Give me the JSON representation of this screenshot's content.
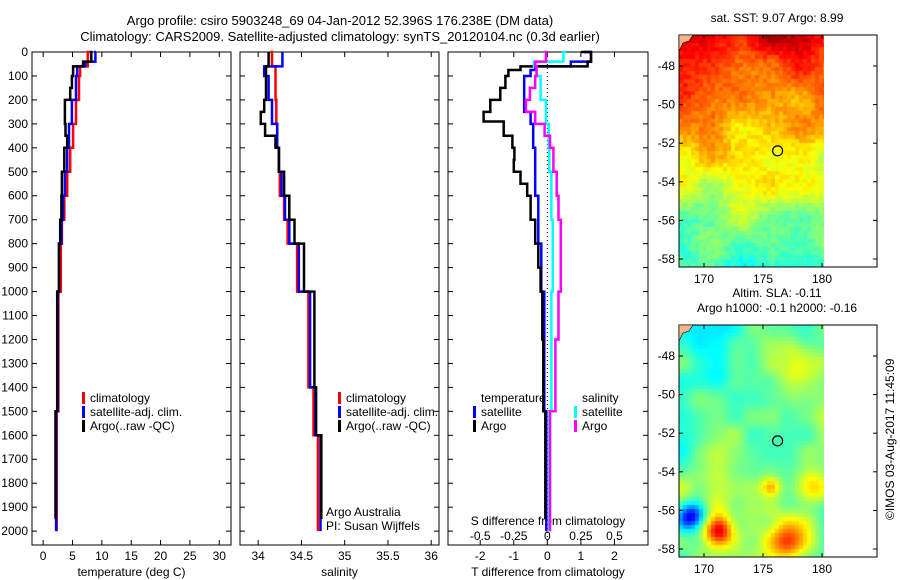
{
  "header": {
    "title_line1": "Argo profile: csiro 5903248_69 04-Jan-2012 52.396S 176.238E (DM data)",
    "title_line2": "Climatology: CARS2009. Satellite-adjusted climatology: synTS_20120104.nc (0.3d earlier)"
  },
  "colors": {
    "climatology": "#ff0000",
    "satellite": "#0000ff",
    "argo": "#000000",
    "s_satellite": "#00ffff",
    "s_argo": "#ff00ff"
  },
  "chart_data": [
    {
      "type": "line",
      "id": "temperature",
      "xlabel": "temperature (deg C)",
      "ylabel": "",
      "xlim": [
        -1.9,
        32
      ],
      "ylim": [
        2058,
        0
      ],
      "xticks": [
        0,
        5,
        10,
        15,
        20,
        25,
        30
      ],
      "yticks": [
        0,
        100,
        200,
        300,
        400,
        500,
        600,
        700,
        800,
        900,
        1000,
        1100,
        1200,
        1300,
        1400,
        1500,
        1600,
        1700,
        1800,
        1900,
        2000
      ],
      "legend": {
        "placement": "center-left",
        "entries": [
          "climatology",
          "satellite-adj. clim.",
          "Argo(..raw -QC)"
        ]
      },
      "series": [
        {
          "name": "climatology",
          "color_key": "climatology",
          "depth": [
            0,
            60,
            100,
            200,
            300,
            400,
            500,
            600,
            700,
            800,
            1000,
            1500,
            2000
          ],
          "values": [
            8.0,
            7.6,
            6.3,
            6.1,
            5.6,
            5.1,
            4.6,
            4.1,
            3.6,
            3.2,
            3.0,
            2.6,
            2.3
          ]
        },
        {
          "name": "satellite-adj. clim.",
          "color_key": "satellite",
          "depth": [
            0,
            40,
            60,
            100,
            200,
            300,
            400,
            500,
            600,
            700,
            800,
            1000,
            1500,
            2000
          ],
          "values": [
            9.0,
            8.9,
            7.2,
            5.8,
            5.6,
            4.9,
            4.4,
            4.1,
            3.7,
            3.4,
            3.1,
            2.7,
            2.5,
            2.2
          ]
        },
        {
          "name": "Argo(..raw -QC)",
          "color_key": "argo",
          "depth": [
            0,
            40,
            60,
            100,
            150,
            200,
            300,
            350,
            400,
            500,
            600,
            700,
            800,
            1000,
            1500,
            1950
          ],
          "values": [
            8.0,
            8.2,
            6.8,
            5.1,
            4.9,
            4.6,
            3.7,
            3.8,
            4.1,
            3.6,
            3.2,
            3.1,
            2.9,
            2.7,
            2.4,
            2.1
          ]
        }
      ]
    },
    {
      "type": "line",
      "id": "salinity",
      "xlabel": "salinity",
      "xlim": [
        33.79,
        36.09
      ],
      "ylim": [
        2058,
        0
      ],
      "xticks": [
        34,
        34.5,
        35,
        35.5,
        36
      ],
      "legend": {
        "placement": "center-right",
        "entries": [
          "climatology",
          "satellite-adj. clim.",
          "Argo(..raw -QC)"
        ]
      },
      "annotation": [
        "Argo Australia",
        "PI: Susan Wijffels"
      ],
      "series": [
        {
          "name": "climatology",
          "color_key": "climatology",
          "depth": [
            0,
            60,
            100,
            200,
            300,
            400,
            500,
            600,
            700,
            800,
            1000,
            1400,
            1600,
            2000
          ],
          "values": [
            34.14,
            34.16,
            34.2,
            34.2,
            34.21,
            34.22,
            34.24,
            34.25,
            34.3,
            34.34,
            34.45,
            34.58,
            34.64,
            34.69
          ]
        },
        {
          "name": "satellite-adj. clim.",
          "color_key": "satellite",
          "depth": [
            0,
            60,
            80,
            100,
            200,
            300,
            400,
            500,
            600,
            700,
            800,
            1000,
            1400,
            1600,
            2000
          ],
          "values": [
            34.28,
            34.28,
            34.07,
            34.07,
            34.12,
            34.16,
            34.22,
            34.24,
            34.27,
            34.31,
            34.36,
            34.47,
            34.6,
            34.66,
            34.72
          ]
        },
        {
          "name": "Argo(..raw -QC)",
          "color_key": "argo",
          "depth": [
            0,
            60,
            100,
            200,
            250,
            300,
            350,
            400,
            500,
            600,
            700,
            800,
            1000,
            1400,
            1600,
            1950
          ],
          "values": [
            34.12,
            34.12,
            34.09,
            34.09,
            34.07,
            34.03,
            34.08,
            34.2,
            34.24,
            34.3,
            34.36,
            34.42,
            34.53,
            34.65,
            34.67,
            34.73
          ]
        }
      ]
    },
    {
      "type": "line",
      "id": "difference",
      "xlabel": "T difference from climatology",
      "x2label": "S difference from climatology",
      "xlim": [
        -2.96,
        3.0
      ],
      "x2lim": [
        -0.74,
        0.75
      ],
      "ylim": [
        2058,
        0
      ],
      "xticks": [
        -2,
        -1,
        0,
        1,
        2
      ],
      "x2ticks": [
        -0.5,
        -0.25,
        0,
        0.25,
        0.5
      ],
      "zero_line": true,
      "legend": {
        "placement": "center",
        "groups": [
          {
            "title": "temperature",
            "entries": [
              "satellite",
              "Argo"
            ]
          },
          {
            "title": "salinity",
            "entries": [
              "satellite",
              "Argo"
            ]
          }
        ]
      },
      "series": [
        {
          "name": "temperature satellite",
          "axis": "T",
          "color_key": "satellite",
          "depth": [
            0,
            40,
            60,
            75,
            100,
            200,
            250,
            300,
            400,
            600,
            800,
            1000,
            1500,
            2000
          ],
          "values": [
            1.1,
            1.3,
            0.7,
            -0.36,
            -0.5,
            -0.69,
            -0.69,
            -0.5,
            -0.42,
            -0.36,
            -0.27,
            -0.18,
            -0.09,
            -0.03
          ]
        },
        {
          "name": "temperature Argo",
          "axis": "T",
          "color_key": "argo",
          "depth": [
            0,
            40,
            60,
            75,
            100,
            150,
            200,
            250,
            290,
            350,
            400,
            450,
            500,
            550,
            600,
            700,
            800,
            900,
            1000,
            1200,
            1500,
            1950
          ],
          "values": [
            1.0,
            1.3,
            1.2,
            -0.8,
            -1.16,
            -1.25,
            -1.4,
            -1.7,
            -1.9,
            -1.3,
            -1.04,
            -0.98,
            -1.0,
            -0.8,
            -0.6,
            -0.5,
            -0.36,
            -0.27,
            -0.2,
            -0.15,
            -0.12,
            -0.06
          ]
        },
        {
          "name": "salinity satellite",
          "axis": "S",
          "color_key": "s_satellite",
          "depth": [
            0,
            40,
            60,
            100,
            200,
            300,
            400,
            500,
            700,
            1000,
            1500,
            2000
          ],
          "values": [
            0.14,
            0.12,
            -0.1,
            -0.08,
            -0.05,
            -0.01,
            0.01,
            0.015,
            0.03,
            0.04,
            0.03,
            0.015
          ]
        },
        {
          "name": "salinity Argo",
          "axis": "S",
          "color_key": "s_argo",
          "depth": [
            0,
            40,
            60,
            100,
            150,
            200,
            250,
            300,
            350,
            400,
            500,
            600,
            700,
            800,
            1000,
            1200,
            1500,
            2000
          ],
          "values": [
            0.0,
            -0.01,
            -0.09,
            -0.08,
            -0.09,
            -0.13,
            -0.16,
            -0.09,
            -0.02,
            0.02,
            0.045,
            0.07,
            0.083,
            0.1,
            0.1,
            0.083,
            0.06,
            0.02
          ]
        }
      ]
    }
  ],
  "maps": [
    {
      "id": "sst",
      "title_lines": [
        "sat. SST: 9.07 Argo: 8.99"
      ],
      "xticks": [
        170,
        175,
        180
      ],
      "yticks": [
        -48,
        -50,
        -52,
        -54,
        -56,
        -58
      ],
      "float_lon": 176.238,
      "float_lat": -52.396
    },
    {
      "id": "sla",
      "title_lines": [
        "Altim. SLA: -0.11",
        "Argo h1000: -0.1 h2000: -0.16"
      ],
      "xticks": [
        170,
        175,
        180
      ],
      "yticks": [
        -48,
        -50,
        -52,
        -54,
        -56,
        -58
      ],
      "float_lon": 176.238,
      "float_lat": -52.396
    }
  ],
  "credit": "©IMOS 03-Aug-2017 11:45:09"
}
